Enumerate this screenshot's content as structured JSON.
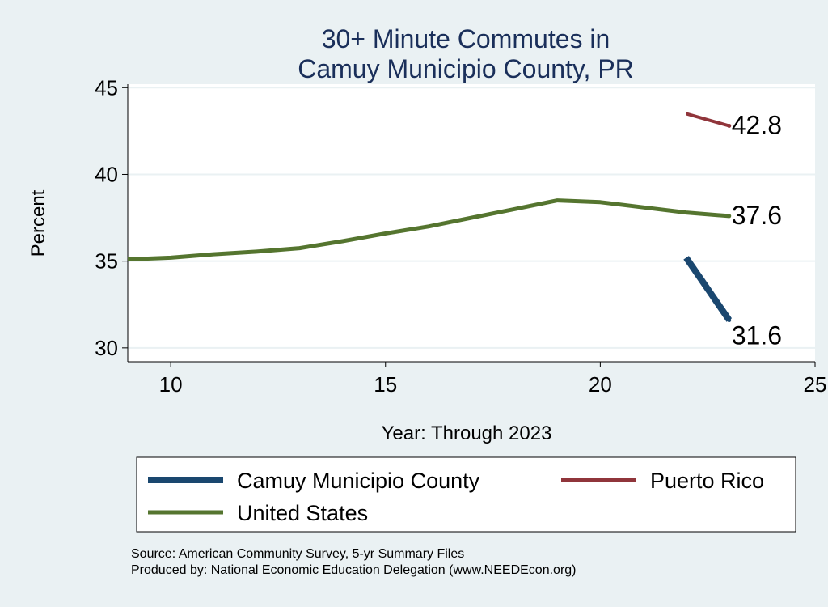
{
  "chart_data": {
    "type": "line",
    "title_lines": [
      "30+ Minute Commutes in",
      "Camuy Municipio County, PR"
    ],
    "xlabel": "Year: Through 2023",
    "ylabel": "Percent",
    "xlim": [
      9,
      25
    ],
    "ylim": [
      29.2,
      45.2
    ],
    "x_ticks": [
      10,
      15,
      20,
      25
    ],
    "y_ticks": [
      30,
      35,
      40,
      45
    ],
    "grid": true,
    "series": [
      {
        "name": "Camuy Municipio County",
        "color": "#1a476f",
        "width": 8,
        "x": [
          22,
          23
        ],
        "y": [
          35.2,
          31.6
        ],
        "end_label": "31.6"
      },
      {
        "name": "Puerto Rico",
        "color": "#90353b",
        "width": 4,
        "x": [
          22,
          23
        ],
        "y": [
          43.5,
          42.8
        ],
        "end_label": "42.8"
      },
      {
        "name": "United States",
        "color": "#55752f",
        "width": 5,
        "x": [
          9,
          10,
          11,
          12,
          13,
          14,
          15,
          16,
          17,
          18,
          19,
          20,
          21,
          22,
          23
        ],
        "y": [
          35.1,
          35.2,
          35.4,
          35.55,
          35.75,
          36.15,
          36.6,
          37.0,
          37.5,
          38.0,
          38.5,
          38.4,
          38.1,
          37.8,
          37.6
        ],
        "end_label": "37.6"
      }
    ],
    "legend_position": "bottom",
    "legend_order": [
      "Camuy Municipio County",
      "Puerto Rico",
      "United States"
    ]
  },
  "source_note": "Source: American Community Survey, 5-yr Summary Files",
  "producer_note": "Produced by: National Economic Education Delegation (www.NEEDEcon.org)"
}
